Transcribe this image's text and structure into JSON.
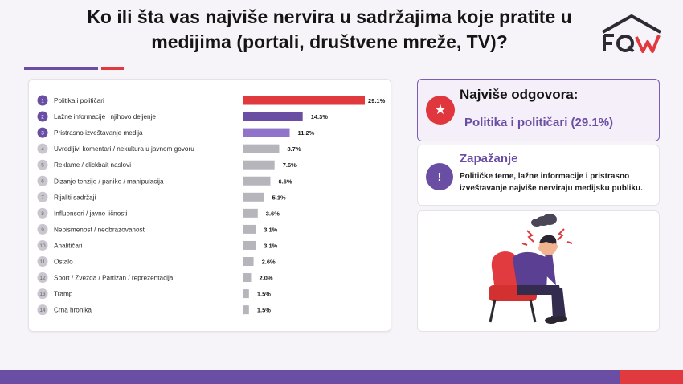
{
  "header": {
    "title": "Ko ili šta vas najviše nervira u sadržajima koje pratite u medijima (portali, društvene mreže, TV)?"
  },
  "logo": {
    "icon": "house-logo-icon"
  },
  "colors": {
    "purple": "#6a4ea3",
    "purple_light": "#8f74c9",
    "red": "#e03a3e",
    "gray_bar": "#b7b5bc"
  },
  "chart_data": {
    "type": "bar",
    "orientation": "horizontal",
    "categories": [
      "Politika i političari",
      "Lažne informacije i njihovo deljenje",
      "Pristrasno izveštavanje medija",
      "Uvredljivi komentari / nekultura u javnom govoru",
      "Reklame / clickbait naslovi",
      "Dizanje tenzije / panike / manipulacija",
      "Rijaliti sadržaji",
      "Influenseri / javne ličnosti",
      "Nepismenost / neobrazovanost",
      "Analitičari",
      "Ostalo",
      "Sport / Zvezda / Partizan / reprezentacija",
      "Tramp",
      "Crna hronika"
    ],
    "ranks": [
      "1",
      "2",
      "3",
      "4",
      "5",
      "6",
      "7",
      "8",
      "9",
      "10",
      "11",
      "12",
      "13",
      "14"
    ],
    "values": [
      29.1,
      14.3,
      11.2,
      8.7,
      7.6,
      6.6,
      5.1,
      3.6,
      3.1,
      3.1,
      2.6,
      2.0,
      1.5,
      1.5
    ],
    "value_labels": [
      "29.1%",
      "14.3%",
      "11.2%",
      "8.7%",
      "7.6%",
      "6.6%",
      "5.1%",
      "3.6%",
      "3.1%",
      "3.1%",
      "2.6%",
      "2.0%",
      "1.5%",
      "1.5%"
    ],
    "bar_colors": [
      "#e03a3e",
      "#6a4ea3",
      "#8f74c9",
      "#b7b5bc",
      "#b7b5bc",
      "#b7b5bc",
      "#b7b5bc",
      "#b7b5bc",
      "#b7b5bc",
      "#b7b5bc",
      "#b7b5bc",
      "#b7b5bc",
      "#b7b5bc",
      "#b7b5bc"
    ],
    "badge_colors": [
      "#6a4ea3",
      "#6a4ea3",
      "#6a4ea3",
      "#c9c6cd",
      "#c9c6cd",
      "#c9c6cd",
      "#c9c6cd",
      "#c9c6cd",
      "#c9c6cd",
      "#c9c6cd",
      "#c9c6cd",
      "#c9c6cd",
      "#c9c6cd",
      "#c9c6cd"
    ],
    "xlim": [
      0,
      29.1
    ],
    "grid": false,
    "legend": "none"
  },
  "top_answer": {
    "heading": "Najviše odgovora:",
    "value": "Politika i političari (29.1%)",
    "icon": "star-icon"
  },
  "observation": {
    "heading": "Zapažanje",
    "text": "Političke teme, lažne informacije i pristrasno izveštavanje najviše nerviraju medijsku publiku.",
    "icon": "exclamation-icon"
  },
  "illustration": {
    "icon": "stressed-person-illustration"
  }
}
